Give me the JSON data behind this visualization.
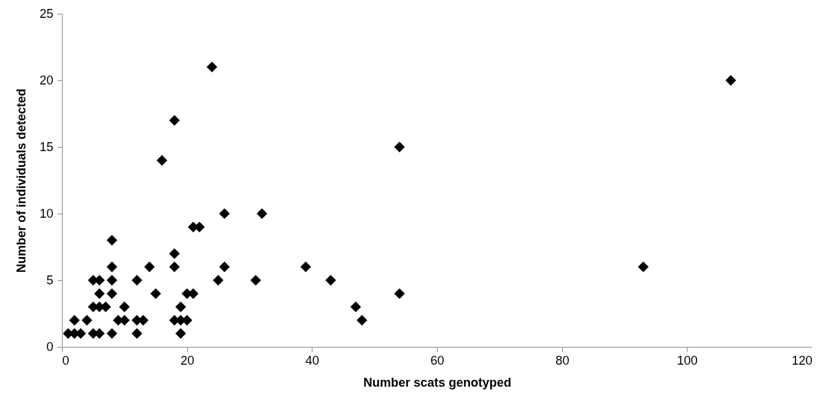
{
  "chart_data": {
    "type": "scatter",
    "xlabel": "Number scats genotyped",
    "ylabel": "Number of individuals detected",
    "x": [
      1,
      2,
      2,
      3,
      4,
      5,
      5,
      5,
      6,
      6,
      6,
      6,
      7,
      8,
      8,
      8,
      8,
      8,
      9,
      10,
      10,
      12,
      12,
      12,
      13,
      14,
      15,
      16,
      18,
      18,
      18,
      18,
      19,
      19,
      19,
      20,
      20,
      21,
      21,
      22,
      24,
      25,
      26,
      26,
      31,
      32,
      39,
      43,
      47,
      48,
      54,
      54,
      93,
      107
    ],
    "series": [
      {
        "color": "#000000",
        "values": [
          1,
          1,
          2,
          1,
          2,
          1,
          3,
          5,
          1,
          3,
          4,
          5,
          3,
          1,
          4,
          5,
          6,
          8,
          2,
          2,
          3,
          1,
          2,
          5,
          2,
          6,
          4,
          14,
          2,
          6,
          7,
          17,
          1,
          2,
          3,
          2,
          4,
          4,
          9,
          9,
          21,
          5,
          6,
          10,
          5,
          10,
          6,
          5,
          3,
          2,
          4,
          15,
          6,
          20
        ]
      }
    ],
    "xlim": [
      0,
      120
    ],
    "xticks": [
      0,
      20,
      40,
      60,
      80,
      100,
      120
    ],
    "ylim": [
      0,
      25
    ],
    "yticks": [
      0,
      5,
      10,
      15,
      20,
      25
    ],
    "grid": false,
    "marker": "diamond",
    "legend": false
  }
}
